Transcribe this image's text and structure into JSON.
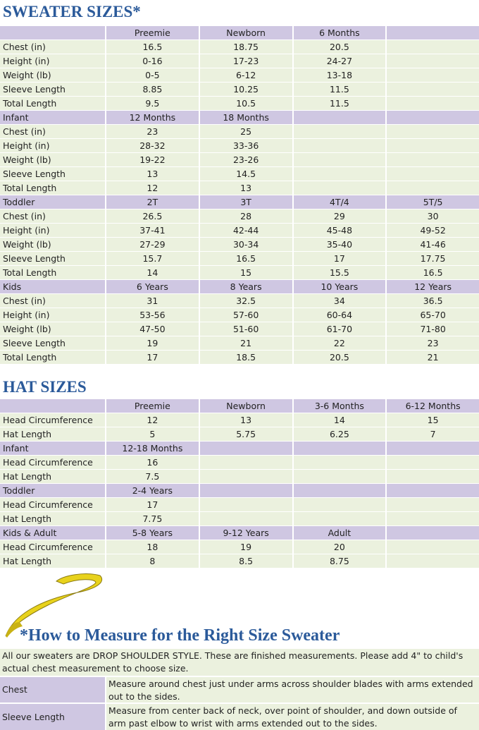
{
  "sweater": {
    "title": "SWEATER SIZES*",
    "sections": [
      {
        "sizes": [
          "Preemie",
          "Newborn",
          "6 Months"
        ],
        "rows": [
          {
            "label": "Chest (in)",
            "values": [
              "16.5",
              "18.75",
              "20.5"
            ]
          },
          {
            "label": "Height (in)",
            "values": [
              "0-16",
              "17-23",
              "24-27"
            ]
          },
          {
            "label": "Weight (lb)",
            "values": [
              "0-5",
              "6-12",
              "13-18"
            ]
          },
          {
            "label": "Sleeve Length",
            "values": [
              "8.85",
              "10.25",
              "11.5"
            ]
          },
          {
            "label": "Total Length",
            "values": [
              "9.5",
              "10.5",
              "11.5"
            ]
          }
        ]
      },
      {
        "label": "Infant",
        "sizes": [
          "12 Months",
          "18 Months"
        ],
        "rows": [
          {
            "label": "Chest (in)",
            "values": [
              "23",
              "25"
            ]
          },
          {
            "label": "Height (in)",
            "values": [
              "28-32",
              "33-36"
            ]
          },
          {
            "label": "Weight (lb)",
            "values": [
              "19-22",
              "23-26"
            ]
          },
          {
            "label": "Sleeve Length",
            "values": [
              "13",
              "14.5"
            ]
          },
          {
            "label": "Total Length",
            "values": [
              "12",
              "13"
            ]
          }
        ]
      },
      {
        "label": "Toddler",
        "sizes": [
          "2T",
          "3T",
          "4T/4",
          "5T/5"
        ],
        "rows": [
          {
            "label": "Chest (in)",
            "values": [
              "26.5",
              "28",
              "29",
              "30"
            ]
          },
          {
            "label": "Height (in)",
            "values": [
              "37-41",
              "42-44",
              "45-48",
              "49-52"
            ]
          },
          {
            "label": "Weight (lb)",
            "values": [
              "27-29",
              "30-34",
              "35-40",
              "41-46"
            ]
          },
          {
            "label": "Sleeve Length",
            "values": [
              "15.7",
              "16.5",
              "17",
              "17.75"
            ]
          },
          {
            "label": "Total Length",
            "values": [
              "14",
              "15",
              "15.5",
              "16.5"
            ]
          }
        ]
      },
      {
        "label": "Kids",
        "sizes": [
          "6 Years",
          "8 Years",
          "10 Years",
          "12 Years"
        ],
        "rows": [
          {
            "label": "Chest (in)",
            "values": [
              "31",
              "32.5",
              "34",
              "36.5"
            ]
          },
          {
            "label": "Height (in)",
            "values": [
              "53-56",
              "57-60",
              "60-64",
              "65-70"
            ]
          },
          {
            "label": "Weight (lb)",
            "values": [
              "47-50",
              "51-60",
              "61-70",
              "71-80"
            ]
          },
          {
            "label": "Sleeve Length",
            "values": [
              "19",
              "21",
              "22",
              "23"
            ]
          },
          {
            "label": "Total Length",
            "values": [
              "17",
              "18.5",
              "20.5",
              "21"
            ]
          }
        ]
      }
    ]
  },
  "hat": {
    "title": "HAT SIZES",
    "sections": [
      {
        "sizes": [
          "Preemie",
          "Newborn",
          "3-6 Months",
          "6-12 Months"
        ],
        "rows": [
          {
            "label": "Head Circumference",
            "values": [
              "12",
              "13",
              "14",
              "15"
            ]
          },
          {
            "label": "Hat Length",
            "values": [
              "5",
              "5.75",
              "6.25",
              "7"
            ]
          }
        ]
      },
      {
        "label": "Infant",
        "sizes": [
          "12-18 Months"
        ],
        "rows": [
          {
            "label": "Head Circumference",
            "values": [
              "16"
            ]
          },
          {
            "label": "Hat Length",
            "values": [
              "7.5"
            ]
          }
        ]
      },
      {
        "label": "Toddler",
        "sizes": [
          "2-4 Years"
        ],
        "rows": [
          {
            "label": "Head Circumference",
            "values": [
              "17"
            ]
          },
          {
            "label": "Hat Length",
            "values": [
              "7.75"
            ]
          }
        ]
      },
      {
        "label": "Kids & Adult",
        "sizes": [
          "5-8 Years",
          "9-12 Years",
          "Adult"
        ],
        "rows": [
          {
            "label": "Head Circumference",
            "values": [
              "18",
              "19",
              "20"
            ]
          },
          {
            "label": "Hat Length",
            "values": [
              "8",
              "8.5",
              "8.75"
            ]
          }
        ]
      }
    ]
  },
  "measure": {
    "title": "*How to Measure for the Right Size Sweater",
    "intro": "All our sweaters are DROP SHOULDER STYLE.  These are finished measurements.  Please add 4\" to child's actual chest measurement to choose size.",
    "items": [
      {
        "term": "Chest",
        "text": "Measure around chest just under arms across shoulder blades with arms extended out to the sides."
      },
      {
        "term": "Sleeve Length",
        "text": "Measure from center back of neck, over point of shoulder, and down outside of arm past elbow to wrist with arms extended out to the sides."
      }
    ]
  }
}
